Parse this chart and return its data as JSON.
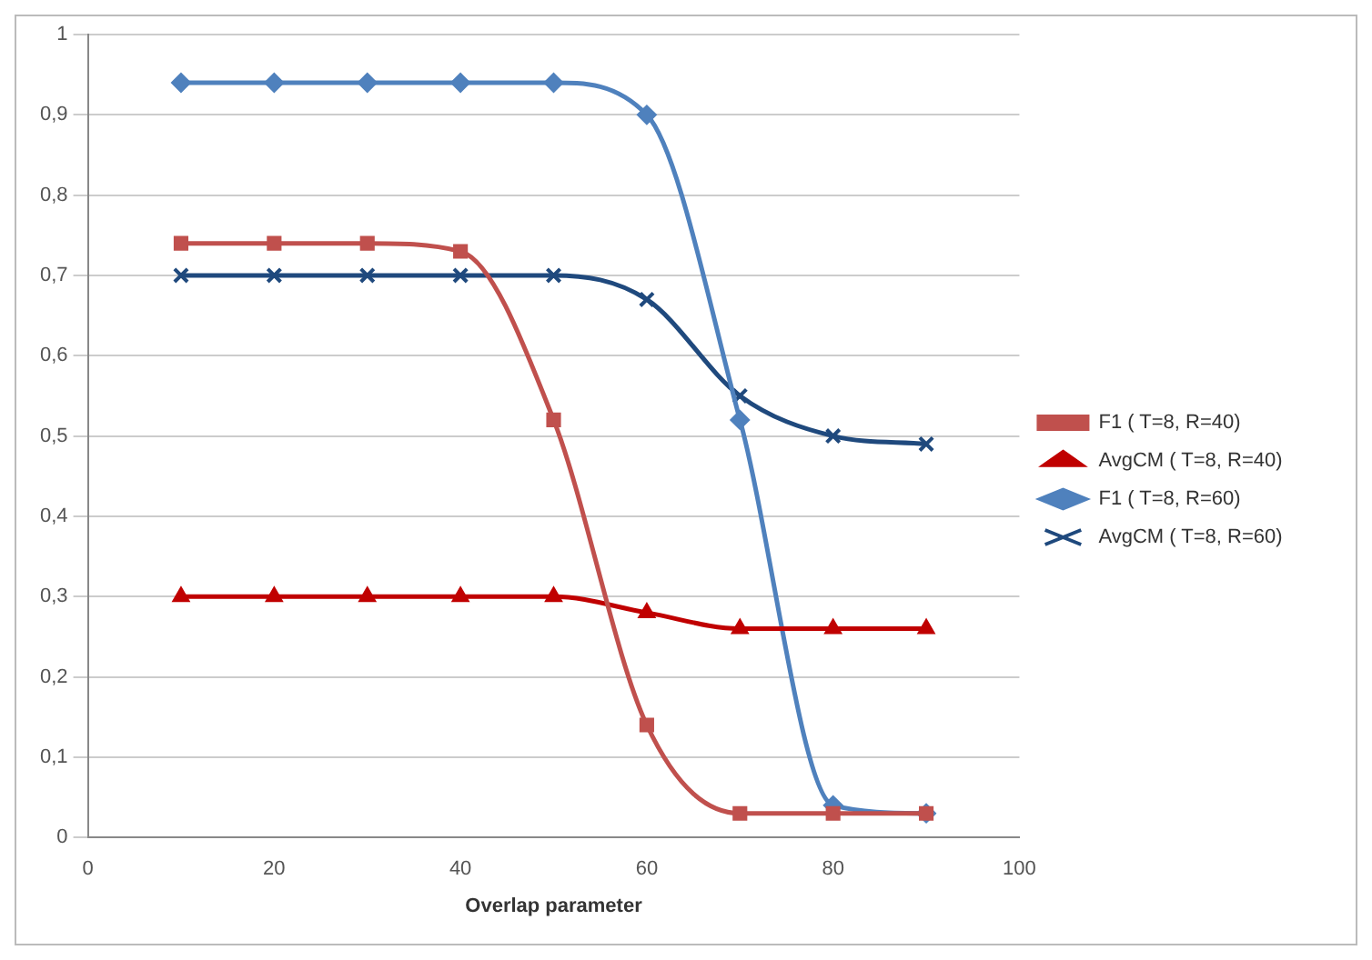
{
  "chart_data": {
    "type": "line",
    "xlabel": "Overlap parameter",
    "x": [
      10,
      20,
      30,
      40,
      50,
      60,
      70,
      80,
      90
    ],
    "series": [
      {
        "name": "F1 ( T=8, R=40)",
        "color": "#c0504d",
        "marker": "square",
        "values": [
          0.74,
          0.74,
          0.74,
          0.73,
          0.52,
          0.14,
          0.03,
          0.03,
          0.03
        ]
      },
      {
        "name": "AvgCM ( T=8, R=40)",
        "color": "#c00000",
        "marker": "triangle",
        "values": [
          0.3,
          0.3,
          0.3,
          0.3,
          0.3,
          0.28,
          0.26,
          0.26,
          0.26
        ]
      },
      {
        "name": "F1 ( T=8, R=60)",
        "color": "#4f81bd",
        "marker": "diamond",
        "values": [
          0.94,
          0.94,
          0.94,
          0.94,
          0.94,
          0.9,
          0.52,
          0.04,
          0.03
        ]
      },
      {
        "name": "AvgCM ( T=8, R=60)",
        "color": "#1f497d",
        "marker": "cross",
        "values": [
          0.7,
          0.7,
          0.7,
          0.7,
          0.7,
          0.67,
          0.55,
          0.5,
          0.49
        ]
      }
    ],
    "xlim": [
      0,
      100
    ],
    "xticks": [
      0,
      20,
      40,
      60,
      80,
      100
    ],
    "ylim": [
      0,
      1
    ],
    "yticks": [
      0,
      {
        "value": 0.1,
        "label": "0,1"
      },
      {
        "value": 0.2,
        "label": "0,2"
      },
      {
        "value": 0.3,
        "label": "0,3"
      },
      {
        "value": 0.4,
        "label": "0,4"
      },
      {
        "value": 0.5,
        "label": "0,5"
      },
      {
        "value": 0.6,
        "label": "0,6"
      },
      {
        "value": 0.7,
        "label": "0,7"
      },
      {
        "value": 0.8,
        "label": "0,8"
      },
      {
        "value": 0.9,
        "label": "0,9"
      },
      1
    ],
    "grid": "y",
    "legend": "right"
  }
}
